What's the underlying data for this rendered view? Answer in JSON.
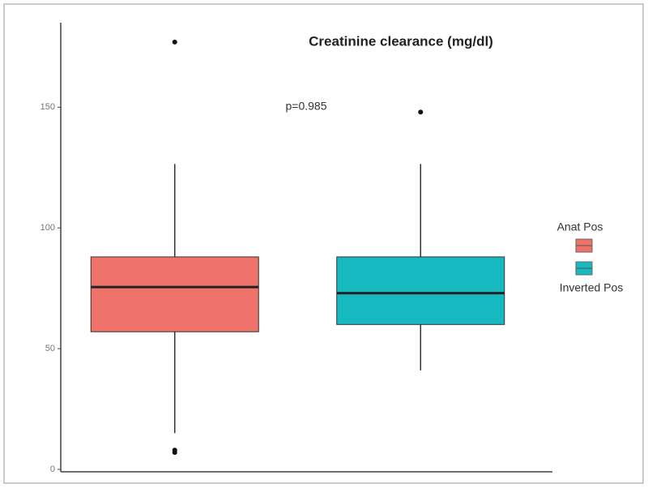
{
  "chart_data": {
    "type": "box",
    "title": "Creatinine clearance (mg/dl)",
    "annotation": "p=0.985",
    "ylim": [
      -1,
      185
    ],
    "yticks": [
      0,
      50,
      100,
      150
    ],
    "series": [
      {
        "name": "Anat Pos",
        "color": "#f0736b",
        "min": 15,
        "q1": 57,
        "median": 75.5,
        "q3": 88,
        "max": 126.5,
        "outliers": [
          177,
          8,
          7
        ]
      },
      {
        "name": "Inverted Pos",
        "color": "#17b9c0",
        "min": 41,
        "q1": 60,
        "median": 73,
        "q3": 88,
        "max": 126.5,
        "outliers": [
          148
        ]
      }
    ]
  }
}
